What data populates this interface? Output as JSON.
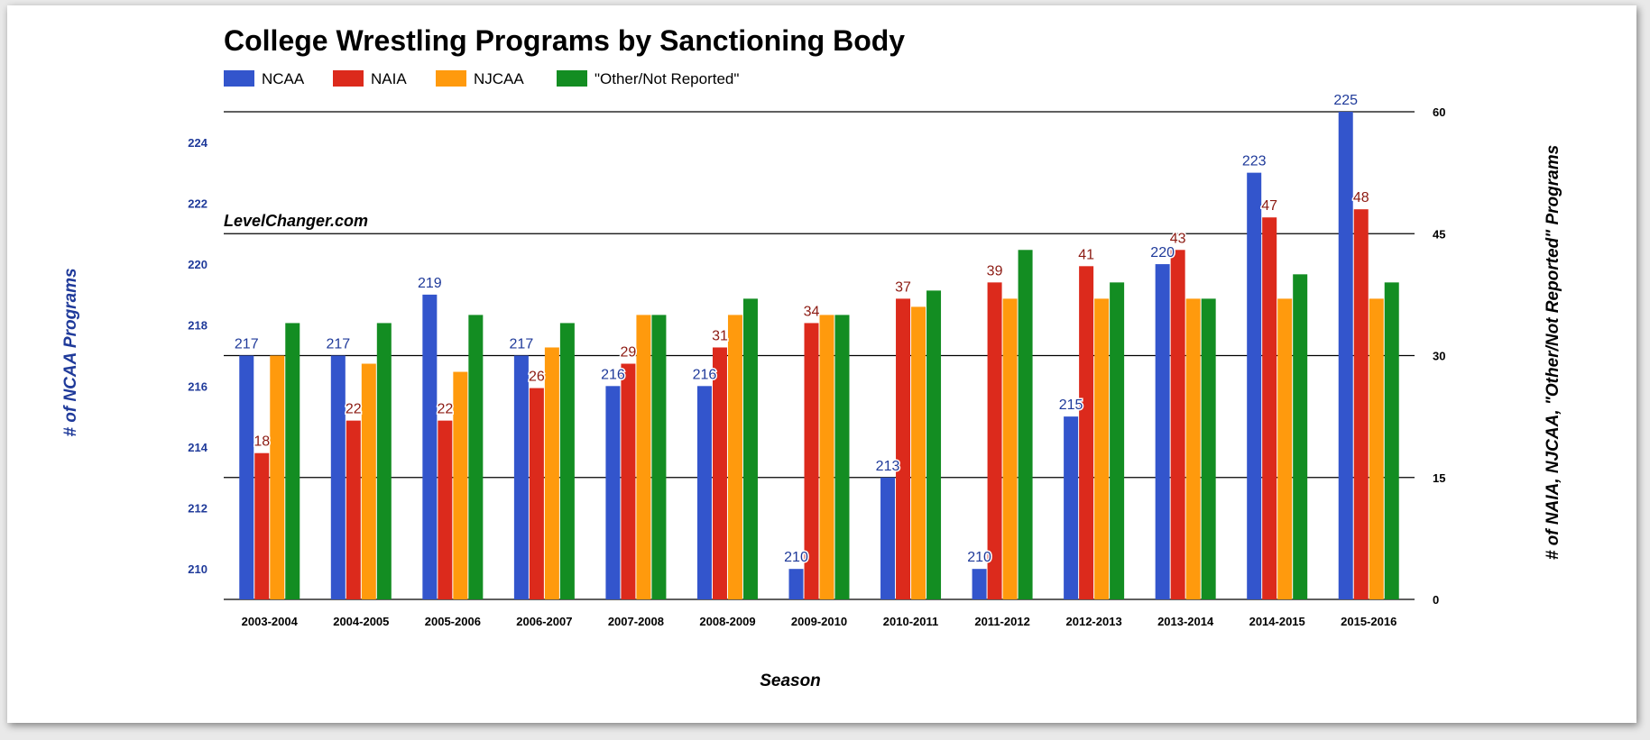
{
  "chart_data": {
    "type": "bar",
    "title": "College Wrestling Programs by Sanctioning Body",
    "watermark": "LevelChanger.com",
    "xlabel": "Season",
    "ylabel_left": "# of NCAA Programs",
    "ylabel_right": "# of NAIA, NJCAA, \"Other/Not Reported\" Programs",
    "categories": [
      "2003-2004",
      "2004-2005",
      "2005-2006",
      "2006-2007",
      "2007-2008",
      "2008-2009",
      "2009-2010",
      "2010-2011",
      "2011-2012",
      "2012-2013",
      "2013-2014",
      "2014-2015",
      "2015-2016"
    ],
    "left_axis": {
      "min": 209,
      "max": 225,
      "ticks": [
        210,
        212,
        214,
        216,
        218,
        220,
        222,
        224
      ]
    },
    "right_axis": {
      "min": 0,
      "max": 60,
      "ticks": [
        0,
        15,
        30,
        45,
        60
      ]
    },
    "series": [
      {
        "name": "NCAA",
        "axis": "left",
        "color": "#3355cc",
        "label_color": "#1f3a9a",
        "show_labels": true,
        "values": [
          217,
          217,
          219,
          217,
          216,
          216,
          210,
          213,
          210,
          215,
          220,
          223,
          225
        ]
      },
      {
        "name": "NAIA",
        "axis": "right",
        "color": "#dc2a1c",
        "label_color": "#8c1a12",
        "show_labels": true,
        "values": [
          18,
          22,
          22,
          26,
          29,
          31,
          34,
          37,
          39,
          41,
          43,
          47,
          48
        ]
      },
      {
        "name": "NJCAA",
        "axis": "right",
        "color": "#ff9a0d",
        "label_color": "#a86100",
        "show_labels": false,
        "values": [
          30,
          29,
          28,
          31,
          35,
          35,
          35,
          36,
          37,
          37,
          37,
          37,
          37
        ]
      },
      {
        "name": "\"Other/Not Reported\"",
        "axis": "right",
        "color": "#138d22",
        "label_color": "#0c5c15",
        "show_labels": false,
        "values": [
          34,
          34,
          35,
          34,
          35,
          37,
          35,
          38,
          43,
          39,
          37,
          40,
          39
        ]
      }
    ]
  }
}
